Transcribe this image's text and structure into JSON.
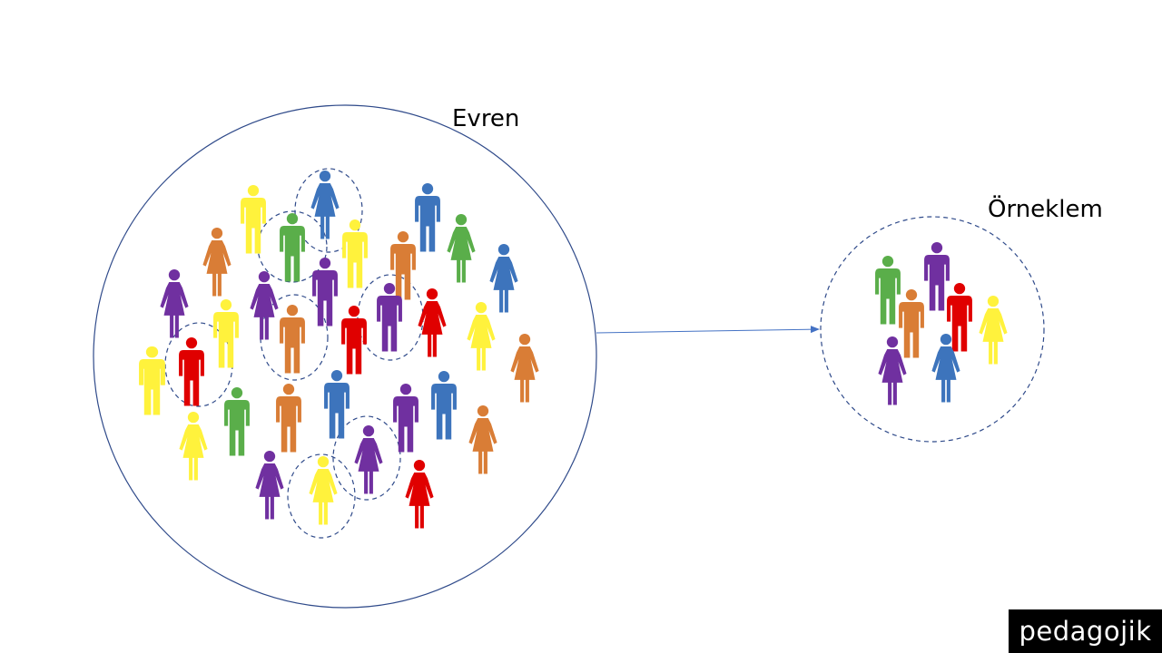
{
  "labels": {
    "population": "Evren",
    "sample": "Örneklem"
  },
  "brand": {
    "text": "pedagojik"
  },
  "colors": {
    "yellow": "#FFF23C",
    "orange": "#D97D36",
    "purple": "#7030A0",
    "blue": "#3D74BC",
    "green": "#5AAE4A",
    "red": "#E00000",
    "circle_stroke": "#2F4A8A"
  },
  "population": [
    {
      "c": "yellow",
      "g": "m"
    },
    {
      "c": "blue",
      "g": "f"
    },
    {
      "c": "blue",
      "g": "m"
    },
    {
      "c": "orange",
      "g": "f"
    },
    {
      "c": "green",
      "g": "m"
    },
    {
      "c": "yellow",
      "g": "m"
    },
    {
      "c": "orange",
      "g": "m"
    },
    {
      "c": "green",
      "g": "f"
    },
    {
      "c": "blue",
      "g": "f"
    },
    {
      "c": "purple",
      "g": "f"
    },
    {
      "c": "purple",
      "g": "f"
    },
    {
      "c": "purple",
      "g": "m"
    },
    {
      "c": "purple",
      "g": "m"
    },
    {
      "c": "red",
      "g": "f"
    },
    {
      "c": "yellow",
      "g": "m"
    },
    {
      "c": "orange",
      "g": "m"
    },
    {
      "c": "red",
      "g": "m"
    },
    {
      "c": "yellow",
      "g": "f"
    },
    {
      "c": "yellow",
      "g": "m"
    },
    {
      "c": "red",
      "g": "m"
    },
    {
      "c": "green",
      "g": "m"
    },
    {
      "c": "yellow",
      "g": "f"
    },
    {
      "c": "orange",
      "g": "m"
    },
    {
      "c": "blue",
      "g": "m"
    },
    {
      "c": "purple",
      "g": "m"
    },
    {
      "c": "blue",
      "g": "m"
    },
    {
      "c": "orange",
      "g": "f"
    },
    {
      "c": "orange",
      "g": "f"
    },
    {
      "c": "yellow",
      "g": "m"
    },
    {
      "c": "purple",
      "g": "f"
    },
    {
      "c": "purple",
      "g": "f"
    },
    {
      "c": "yellow",
      "g": "f"
    },
    {
      "c": "red",
      "g": "f"
    }
  ],
  "sample": [
    {
      "c": "green",
      "g": "m"
    },
    {
      "c": "purple",
      "g": "m"
    },
    {
      "c": "orange",
      "g": "m"
    },
    {
      "c": "red",
      "g": "m"
    },
    {
      "c": "yellow",
      "g": "f"
    },
    {
      "c": "purple",
      "g": "f"
    },
    {
      "c": "blue",
      "g": "f"
    }
  ]
}
